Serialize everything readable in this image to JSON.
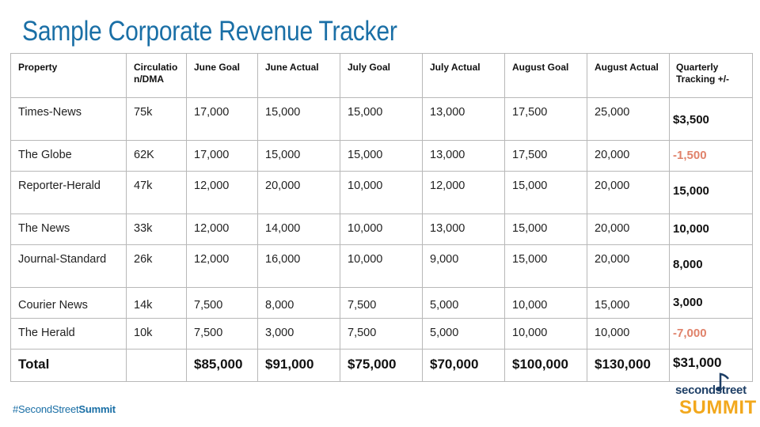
{
  "title": "Sample Corporate Revenue Tracker",
  "headers": [
    "Property",
    "Circulation/DMA",
    "June Goal",
    "June Actual",
    "July Goal",
    "July Actual",
    "August Goal",
    "August Actual",
    "Quarterly Tracking +/-"
  ],
  "rows": [
    {
      "property": "Times-News",
      "circ": "75k",
      "june_goal": "17,000",
      "june_actual": "15,000",
      "july_goal": "15,000",
      "july_actual": "13,000",
      "aug_goal": "17,500",
      "aug_actual": "25,000",
      "tracking": "$3,500"
    },
    {
      "property": "The Globe",
      "circ": "62K",
      "june_goal": "17,000",
      "june_actual": "15,000",
      "july_goal": "15,000",
      "july_actual": "13,000",
      "aug_goal": "17,500",
      "aug_actual": "20,000",
      "tracking": "-1,500"
    },
    {
      "property": "Reporter-Herald",
      "circ": "47k",
      "june_goal": "12,000",
      "june_actual": "20,000",
      "july_goal": "10,000",
      "july_actual": "12,000",
      "aug_goal": "15,000",
      "aug_actual": "20,000",
      "tracking": "15,000"
    },
    {
      "property": "The News",
      "circ": "33k",
      "june_goal": "12,000",
      "june_actual": "14,000",
      "july_goal": "10,000",
      "july_actual": "13,000",
      "aug_goal": "15,000",
      "aug_actual": "20,000",
      "tracking": "10,000"
    },
    {
      "property": "Journal-Standard",
      "circ": "26k",
      "june_goal": "12,000",
      "june_actual": "16,000",
      "july_goal": "10,000",
      "july_actual": "9,000",
      "aug_goal": "15,000",
      "aug_actual": "20,000",
      "tracking": "8,000"
    },
    {
      "property": "Courier News",
      "circ": "14k",
      "june_goal": "7,500",
      "june_actual": "8,000",
      "july_goal": "7,500",
      "july_actual": "5,000",
      "aug_goal": "10,000",
      "aug_actual": "15,000",
      "tracking": "3,000"
    },
    {
      "property": "The Herald",
      "circ": "10k",
      "june_goal": "7,500",
      "june_actual": "3,000",
      "july_goal": "7,500",
      "july_actual": "5,000",
      "aug_goal": "10,000",
      "aug_actual": "10,000",
      "tracking": "-7,000"
    }
  ],
  "total": {
    "label": "Total",
    "circ": "",
    "june_goal": "$85,000",
    "june_actual": "$91,000",
    "july_goal": "$75,000",
    "july_actual": "$70,000",
    "aug_goal": "$100,000",
    "aug_actual": "$130,000",
    "tracking": "$31,000"
  },
  "colors": {
    "title": "#1a6fa6",
    "negative": "#e0826a",
    "logo_navy": "#1e3f66",
    "logo_gold": "#f2a81d"
  },
  "footer": {
    "hashtag_prefix": "#SecondStreet",
    "hashtag_suffix": "Summit"
  },
  "logo": {
    "line1": "secondstreet",
    "line2": "SUMMIT",
    "icon": "music-note-icon"
  }
}
